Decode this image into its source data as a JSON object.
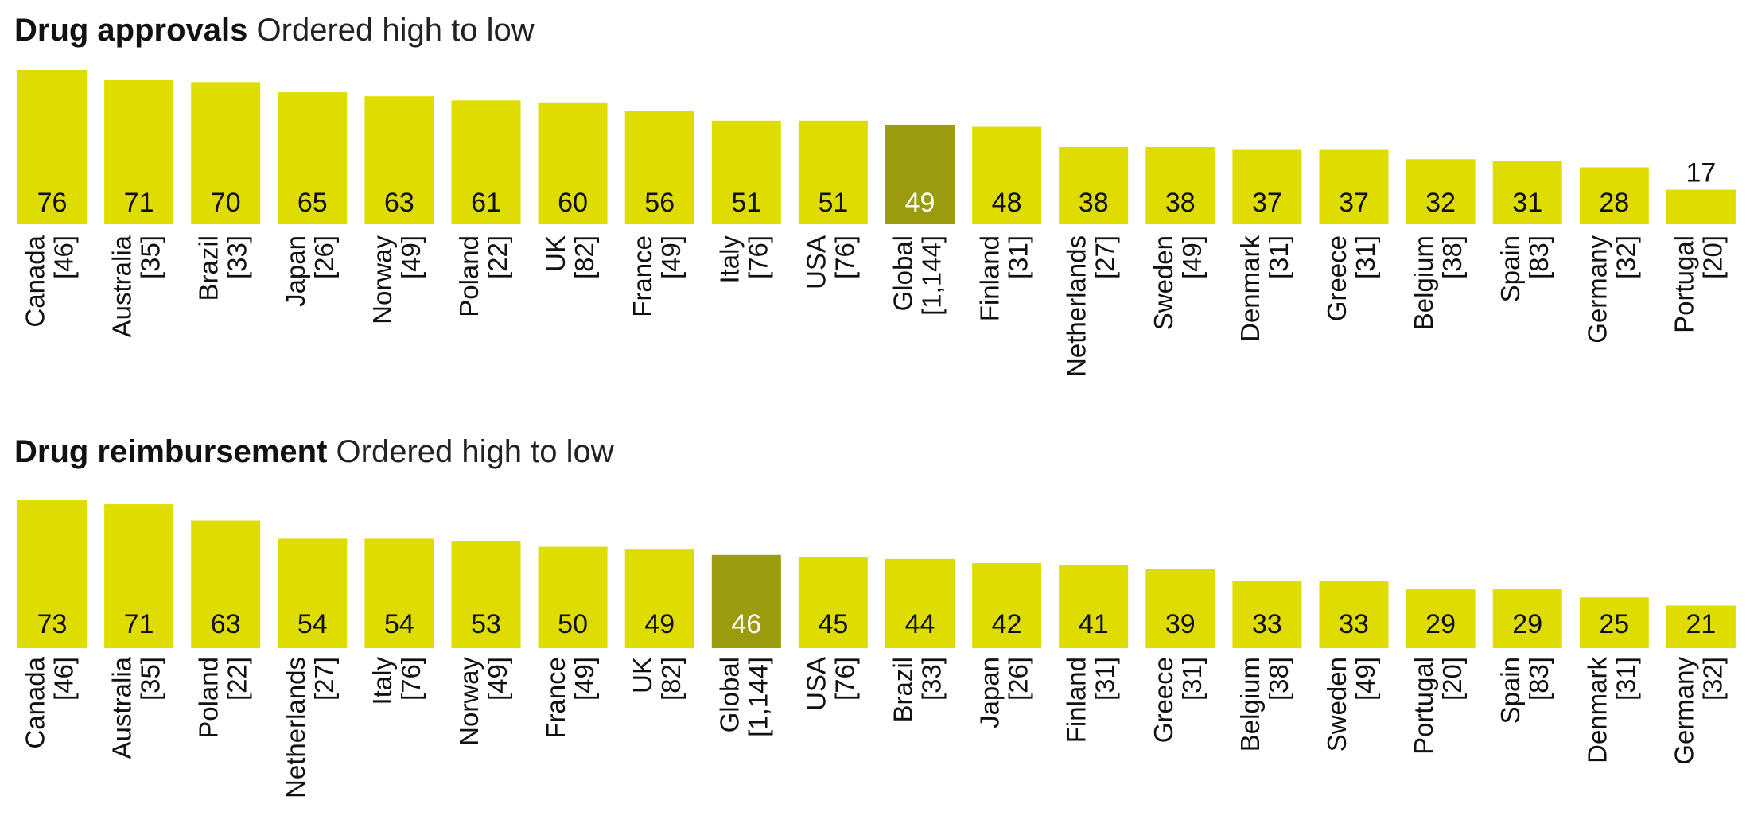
{
  "colors": {
    "bar": "#dedc00",
    "bar_highlight": "#9b9b0e",
    "label_on_highlight": "#ffffff",
    "label": "#111111"
  },
  "chart_data": [
    {
      "type": "bar",
      "title": "Drug approvals",
      "subtitle": "Ordered high to low",
      "categories": [
        "Canada",
        "Australia",
        "Brazil",
        "Japan",
        "Norway",
        "Poland",
        "UK",
        "France",
        "Italy",
        "USA",
        "Global",
        "Finland",
        "Netherlands",
        "Sweden",
        "Denmark",
        "Greece",
        "Belgium",
        "Spain",
        "Germany",
        "Portugal"
      ],
      "sample_sizes": [
        "[46]",
        "[35]",
        "[33]",
        "[26]",
        "[49]",
        "[22]",
        "[82]",
        "[49]",
        "[76]",
        "[76]",
        "[1,144]",
        "[31]",
        "[27]",
        "[49]",
        "[31]",
        "[31]",
        "[38]",
        "[83]",
        "[32]",
        "[20]"
      ],
      "values": [
        76,
        71,
        70,
        65,
        63,
        61,
        60,
        56,
        51,
        51,
        49,
        48,
        38,
        38,
        37,
        37,
        32,
        31,
        28,
        17
      ],
      "highlight": "Global",
      "ylim": [
        0,
        76
      ]
    },
    {
      "type": "bar",
      "title": "Drug reimbursement",
      "subtitle": "Ordered high to low",
      "categories": [
        "Canada",
        "Australia",
        "Poland",
        "Netherlands",
        "Italy",
        "Norway",
        "France",
        "UK",
        "Global",
        "USA",
        "Brazil",
        "Japan",
        "Finland",
        "Greece",
        "Belgium",
        "Sweden",
        "Portugal",
        "Spain",
        "Denmark",
        "Germany"
      ],
      "sample_sizes": [
        "[46]",
        "[35]",
        "[22]",
        "[27]",
        "[76]",
        "[49]",
        "[49]",
        "[82]",
        "[1,144]",
        "[76]",
        "[33]",
        "[26]",
        "[31]",
        "[31]",
        "[38]",
        "[49]",
        "[20]",
        "[83]",
        "[31]",
        "[32]"
      ],
      "values": [
        73,
        71,
        63,
        54,
        54,
        53,
        50,
        49,
        46,
        45,
        44,
        42,
        41,
        39,
        33,
        33,
        29,
        29,
        25,
        21
      ],
      "highlight": "Global",
      "ylim": [
        0,
        73
      ]
    }
  ]
}
